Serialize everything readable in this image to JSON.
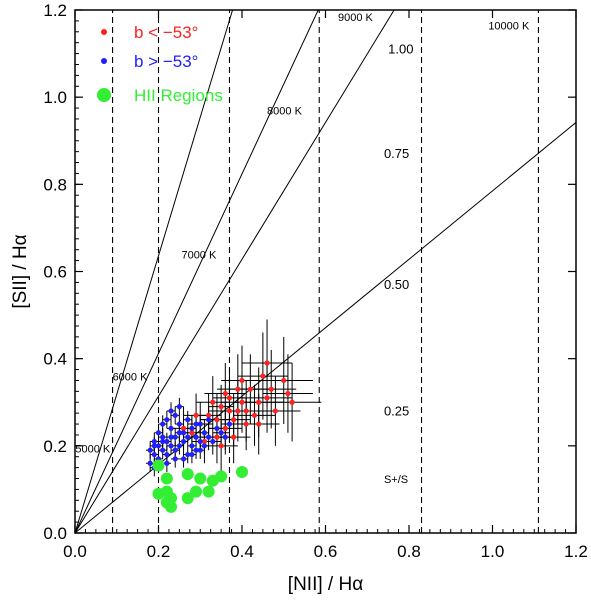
{
  "chart_data": {
    "type": "scatter",
    "title": "",
    "xlabel": "[NII] / Hα",
    "ylabel": "[SII] / Hα",
    "xlim": [
      0.0,
      1.2
    ],
    "ylim": [
      0.0,
      1.2
    ],
    "x_ticks": [
      "0.0",
      "0.2",
      "0.4",
      "0.6",
      "0.8",
      "1.0",
      "1.2"
    ],
    "y_ticks": [
      "0.0",
      "0.2",
      "0.4",
      "0.6",
      "0.8",
      "1.0",
      "1.2"
    ],
    "legend_position": "top-left",
    "colors": {
      "red": "#ff2020",
      "blue": "#2020ff",
      "green": "#33ee33"
    },
    "series": [
      {
        "name": "b < −53°",
        "color": "#ff2020",
        "marker": "small-dot",
        "points": [
          [
            0.28,
            0.23
          ],
          [
            0.3,
            0.25
          ],
          [
            0.32,
            0.27
          ],
          [
            0.34,
            0.22
          ],
          [
            0.35,
            0.29
          ],
          [
            0.36,
            0.24
          ],
          [
            0.37,
            0.31
          ],
          [
            0.38,
            0.26
          ],
          [
            0.39,
            0.28
          ],
          [
            0.4,
            0.3
          ],
          [
            0.41,
            0.25
          ],
          [
            0.42,
            0.33
          ],
          [
            0.43,
            0.27
          ],
          [
            0.44,
            0.3
          ],
          [
            0.45,
            0.36
          ],
          [
            0.46,
            0.31
          ],
          [
            0.47,
            0.33
          ],
          [
            0.5,
            0.35
          ],
          [
            0.51,
            0.32
          ],
          [
            0.52,
            0.3
          ],
          [
            0.33,
            0.3
          ],
          [
            0.36,
            0.32
          ],
          [
            0.39,
            0.33
          ],
          [
            0.41,
            0.28
          ],
          [
            0.29,
            0.27
          ],
          [
            0.31,
            0.21
          ],
          [
            0.26,
            0.24
          ],
          [
            0.38,
            0.22
          ],
          [
            0.35,
            0.2
          ],
          [
            0.44,
            0.25
          ],
          [
            0.46,
            0.39
          ],
          [
            0.48,
            0.28
          ],
          [
            0.34,
            0.26
          ],
          [
            0.37,
            0.28
          ],
          [
            0.4,
            0.35
          ]
        ],
        "errors": [
          [
            0.02,
            0.04
          ],
          [
            0.03,
            0.05
          ],
          [
            0.03,
            0.05
          ],
          [
            0.04,
            0.06
          ],
          [
            0.03,
            0.05
          ],
          [
            0.04,
            0.06
          ],
          [
            0.04,
            0.07
          ],
          [
            0.04,
            0.06
          ],
          [
            0.05,
            0.07
          ],
          [
            0.05,
            0.07
          ],
          [
            0.05,
            0.06
          ],
          [
            0.05,
            0.08
          ],
          [
            0.05,
            0.07
          ],
          [
            0.06,
            0.08
          ],
          [
            0.06,
            0.1
          ],
          [
            0.06,
            0.08
          ],
          [
            0.06,
            0.09
          ],
          [
            0.07,
            0.1
          ],
          [
            0.06,
            0.09
          ],
          [
            0.07,
            0.09
          ],
          [
            0.04,
            0.06
          ],
          [
            0.05,
            0.07
          ],
          [
            0.05,
            0.08
          ],
          [
            0.05,
            0.07
          ],
          [
            0.03,
            0.05
          ],
          [
            0.03,
            0.05
          ],
          [
            0.03,
            0.05
          ],
          [
            0.04,
            0.06
          ],
          [
            0.04,
            0.06
          ],
          [
            0.05,
            0.07
          ],
          [
            0.06,
            0.1
          ],
          [
            0.06,
            0.08
          ],
          [
            0.04,
            0.06
          ],
          [
            0.05,
            0.07
          ],
          [
            0.05,
            0.08
          ]
        ]
      },
      {
        "name": "b > −53°",
        "color": "#2020ff",
        "marker": "small-dot",
        "points": [
          [
            0.18,
            0.16
          ],
          [
            0.19,
            0.18
          ],
          [
            0.2,
            0.17
          ],
          [
            0.2,
            0.2
          ],
          [
            0.21,
            0.19
          ],
          [
            0.21,
            0.22
          ],
          [
            0.22,
            0.18
          ],
          [
            0.22,
            0.21
          ],
          [
            0.23,
            0.2
          ],
          [
            0.23,
            0.24
          ],
          [
            0.24,
            0.19
          ],
          [
            0.24,
            0.22
          ],
          [
            0.25,
            0.2
          ],
          [
            0.25,
            0.25
          ],
          [
            0.26,
            0.21
          ],
          [
            0.26,
            0.23
          ],
          [
            0.27,
            0.18
          ],
          [
            0.27,
            0.22
          ],
          [
            0.28,
            0.2
          ],
          [
            0.28,
            0.24
          ],
          [
            0.29,
            0.19
          ],
          [
            0.29,
            0.22
          ],
          [
            0.3,
            0.21
          ],
          [
            0.3,
            0.25
          ],
          [
            0.31,
            0.2
          ],
          [
            0.31,
            0.23
          ],
          [
            0.32,
            0.22
          ],
          [
            0.32,
            0.26
          ],
          [
            0.33,
            0.21
          ],
          [
            0.34,
            0.24
          ],
          [
            0.35,
            0.23
          ],
          [
            0.36,
            0.22
          ],
          [
            0.37,
            0.25
          ],
          [
            0.19,
            0.21
          ],
          [
            0.2,
            0.23
          ],
          [
            0.21,
            0.25
          ],
          [
            0.22,
            0.26
          ],
          [
            0.23,
            0.28
          ],
          [
            0.24,
            0.27
          ],
          [
            0.25,
            0.29
          ],
          [
            0.19,
            0.15
          ],
          [
            0.2,
            0.16
          ],
          [
            0.22,
            0.16
          ],
          [
            0.24,
            0.17
          ],
          [
            0.26,
            0.17
          ],
          [
            0.28,
            0.18
          ],
          [
            0.3,
            0.19
          ],
          [
            0.18,
            0.19
          ],
          [
            0.19,
            0.2
          ],
          [
            0.21,
            0.21
          ],
          [
            0.23,
            0.22
          ],
          [
            0.25,
            0.23
          ],
          [
            0.27,
            0.26
          ],
          [
            0.29,
            0.25
          ]
        ],
        "errors": [
          [
            0.01,
            0.02
          ],
          [
            0.01,
            0.02
          ],
          [
            0.01,
            0.02
          ],
          [
            0.01,
            0.02
          ],
          [
            0.01,
            0.02
          ],
          [
            0.01,
            0.02
          ],
          [
            0.01,
            0.02
          ],
          [
            0.01,
            0.02
          ],
          [
            0.01,
            0.02
          ],
          [
            0.01,
            0.02
          ],
          [
            0.01,
            0.02
          ],
          [
            0.01,
            0.02
          ],
          [
            0.01,
            0.02
          ],
          [
            0.01,
            0.02
          ],
          [
            0.01,
            0.02
          ],
          [
            0.01,
            0.02
          ],
          [
            0.01,
            0.02
          ],
          [
            0.01,
            0.02
          ],
          [
            0.01,
            0.02
          ],
          [
            0.01,
            0.02
          ],
          [
            0.01,
            0.02
          ],
          [
            0.01,
            0.02
          ],
          [
            0.01,
            0.02
          ],
          [
            0.01,
            0.02
          ],
          [
            0.01,
            0.02
          ],
          [
            0.01,
            0.02
          ],
          [
            0.02,
            0.03
          ],
          [
            0.02,
            0.03
          ],
          [
            0.02,
            0.03
          ],
          [
            0.02,
            0.03
          ],
          [
            0.02,
            0.03
          ],
          [
            0.02,
            0.03
          ],
          [
            0.02,
            0.03
          ],
          [
            0.01,
            0.02
          ],
          [
            0.01,
            0.02
          ],
          [
            0.01,
            0.02
          ],
          [
            0.01,
            0.02
          ],
          [
            0.01,
            0.02
          ],
          [
            0.01,
            0.02
          ],
          [
            0.01,
            0.02
          ],
          [
            0.01,
            0.02
          ],
          [
            0.01,
            0.02
          ],
          [
            0.01,
            0.02
          ],
          [
            0.01,
            0.02
          ],
          [
            0.01,
            0.02
          ],
          [
            0.01,
            0.02
          ],
          [
            0.01,
            0.02
          ],
          [
            0.01,
            0.02
          ],
          [
            0.01,
            0.02
          ],
          [
            0.01,
            0.02
          ],
          [
            0.01,
            0.02
          ],
          [
            0.01,
            0.02
          ],
          [
            0.01,
            0.02
          ],
          [
            0.01,
            0.02
          ]
        ]
      },
      {
        "name": "HII Regions",
        "color": "#33ee33",
        "marker": "large-dot",
        "points": [
          [
            0.2,
            0.155
          ],
          [
            0.22,
            0.125
          ],
          [
            0.27,
            0.135
          ],
          [
            0.3,
            0.125
          ],
          [
            0.33,
            0.12
          ],
          [
            0.35,
            0.13
          ],
          [
            0.4,
            0.14
          ],
          [
            0.2,
            0.09
          ],
          [
            0.22,
            0.07
          ],
          [
            0.22,
            0.095
          ],
          [
            0.23,
            0.06
          ],
          [
            0.23,
            0.08
          ],
          [
            0.27,
            0.08
          ],
          [
            0.29,
            0.095
          ],
          [
            0.32,
            0.095
          ]
        ]
      }
    ],
    "temperature_lines": [
      {
        "label": "5000 K",
        "slope": 1.0,
        "x_drop": 0.09
      },
      {
        "label": "6000 K",
        "slope": 1.0,
        "x_drop": 0.2
      },
      {
        "label": "7000 K",
        "slope": 1.0,
        "x_drop": 0.37
      },
      {
        "label": "8000 K",
        "slope": 1.0,
        "x_drop": 0.585
      },
      {
        "label": "9000 K",
        "slope": 1.0,
        "x_drop": 0.83
      },
      {
        "label": "10000 K",
        "slope": 1.0,
        "x_drop": 1.11
      }
    ],
    "ratio_lines": [
      {
        "label": "1.00",
        "slope": 3.18
      },
      {
        "label": "0.75",
        "slope": 2.06
      },
      {
        "label": "0.50",
        "slope": 1.57
      },
      {
        "label": "0.25",
        "slope": 0.785
      }
    ],
    "ratio_axis_label": "S+/S"
  }
}
